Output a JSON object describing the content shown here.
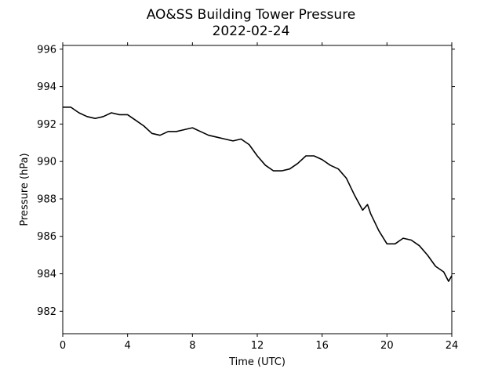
{
  "chart_data": {
    "type": "line",
    "title": "AO&SS Building Tower Pressure",
    "subtitle": "2022-02-24",
    "xlabel": "Time (UTC)",
    "ylabel": "Pressure (hPa)",
    "xlim": [
      0,
      24
    ],
    "ylim": [
      980.8,
      996.2
    ],
    "xticks": [
      0,
      4,
      8,
      12,
      16,
      20,
      24
    ],
    "yticks": [
      982,
      984,
      986,
      988,
      990,
      992,
      994,
      996
    ],
    "grid": false,
    "line_color": "#000000",
    "series": [
      {
        "x": [
          0,
          0.5,
          1,
          1.5,
          2,
          2.5,
          3,
          3.5,
          4,
          4.5,
          5,
          5.5,
          6,
          6.5,
          7,
          7.5,
          8,
          8.5,
          9,
          9.5,
          10,
          10.5,
          11,
          11.5,
          12,
          12.5,
          13,
          13.5,
          14,
          14.5,
          15,
          15.5,
          16,
          16.5,
          17,
          17.5,
          18,
          18.5,
          18.8,
          19,
          19.5,
          20,
          20.5,
          21,
          21.5,
          22,
          22.5,
          23,
          23.5,
          23.8,
          24
        ],
        "values": [
          992.9,
          992.9,
          992.6,
          992.4,
          992.3,
          992.4,
          992.6,
          992.5,
          992.5,
          992.2,
          991.9,
          991.5,
          991.4,
          991.6,
          991.6,
          991.7,
          991.8,
          991.6,
          991.4,
          991.3,
          991.2,
          991.1,
          991.2,
          990.9,
          990.3,
          989.8,
          989.5,
          989.5,
          989.6,
          989.9,
          990.3,
          990.3,
          990.1,
          989.8,
          989.6,
          989.1,
          988.2,
          987.4,
          987.7,
          987.2,
          986.3,
          985.6,
          985.6,
          985.9,
          985.8,
          985.5,
          985.0,
          984.4,
          984.1,
          983.6,
          983.9
        ]
      }
    ]
  }
}
